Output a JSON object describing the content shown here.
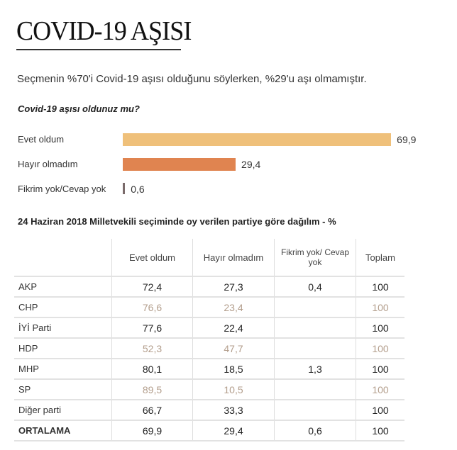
{
  "title": "COVID-19 AŞISI",
  "subtitle": "Seçmenin %70'i Covid-19 aşısı olduğunu söylerken, %29'u aşı olmamıştır.",
  "chart_data": [
    {
      "type": "bar",
      "orientation": "horizontal",
      "title": "Covid-19 aşısı oldunuz mu?",
      "categories": [
        "Evet oldum",
        "Hayır olmadım",
        "Fikrim yok/Cevap yok"
      ],
      "values": [
        69.9,
        29.4,
        0.6
      ],
      "value_labels": [
        "69,9",
        "29,4",
        "0,6"
      ],
      "colors": [
        "#efc07a",
        "#e08450",
        "#7a6a6a"
      ]
    },
    {
      "type": "table",
      "title": "24 Haziran 2018 Milletvekili seçiminde oy verilen partiye göre dağılım - %",
      "columns": [
        "",
        "Evet oldum",
        "Hayır olmadım",
        "Fikrim yok/ Cevap yok",
        "Toplam"
      ],
      "rows": [
        [
          "AKP",
          "72,4",
          "27,3",
          "0,4",
          "100"
        ],
        [
          "CHP",
          "76,6",
          "23,4",
          "",
          "100"
        ],
        [
          "İYİ Parti",
          "77,6",
          "22,4",
          "",
          "100"
        ],
        [
          "HDP",
          "52,3",
          "47,7",
          "",
          "100"
        ],
        [
          "MHP",
          "80,1",
          "18,5",
          "1,3",
          "100"
        ],
        [
          "SP",
          "89,5",
          "10,5",
          "",
          "100"
        ],
        [
          "Diğer parti",
          "66,7",
          "33,3",
          "",
          "100"
        ],
        [
          "ORTALAMA",
          "69,9",
          "29,4",
          "0,6",
          "100"
        ]
      ],
      "muted_row_color": "#b39e8c"
    }
  ]
}
